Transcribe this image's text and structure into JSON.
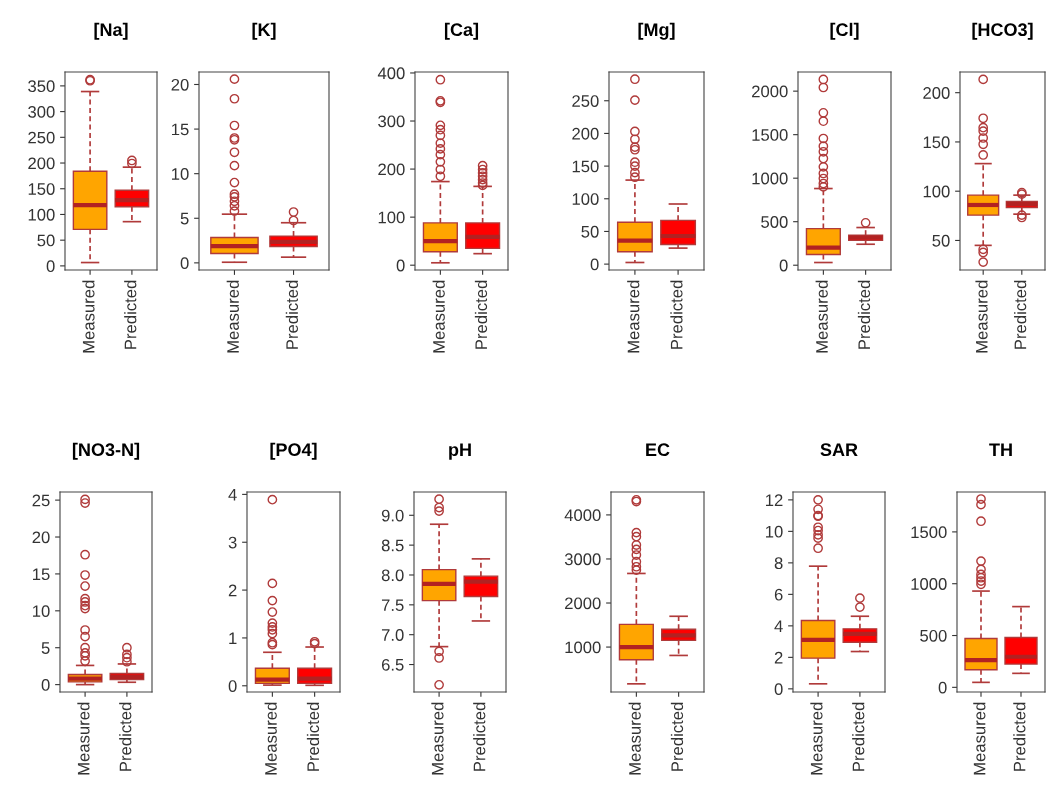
{
  "chart_data": [
    {
      "type": "box",
      "title": "[Na]",
      "categories": [
        "Measured",
        "Predicted"
      ],
      "colors": [
        "#ffa500",
        "#ff0000"
      ],
      "ylim": [
        -8,
        377
      ],
      "yticks": [
        0,
        50,
        100,
        150,
        200,
        250,
        300,
        350
      ],
      "boxes": [
        {
          "low": 6.5,
          "q1": 71,
          "median": 118,
          "q3": 184,
          "high": 339,
          "outliers": [
            362,
            360
          ]
        },
        {
          "low": 86,
          "q1": 115,
          "median": 128,
          "q3": 147,
          "high": 192,
          "outliers": [
            205,
            199
          ]
        }
      ]
    },
    {
      "type": "box",
      "title": "[K]",
      "categories": [
        "Measured",
        "Predicted"
      ],
      "colors": [
        "#ffa500",
        "#ff0000"
      ],
      "ylim": [
        -0.8,
        21.4
      ],
      "yticks": [
        0,
        5,
        10,
        15,
        20
      ],
      "boxes": [
        {
          "low": 0.07,
          "q1": 1.05,
          "median": 1.87,
          "q3": 2.84,
          "high": 5.46,
          "outliers": [
            20.6,
            18.4,
            15.4,
            14.0,
            13.8,
            12.4,
            10.9,
            9.0,
            7.7,
            7.4,
            6.9,
            6.4,
            5.8
          ]
        },
        {
          "low": 0.64,
          "q1": 1.83,
          "median": 2.36,
          "q3": 3.0,
          "high": 4.5,
          "outliers": [
            5.7,
            4.75
          ]
        }
      ]
    },
    {
      "type": "box",
      "title": "[Ca]",
      "categories": [
        "Measured",
        "Predicted"
      ],
      "colors": [
        "#ffa500",
        "#ff0000"
      ],
      "ylim": [
        -10,
        402
      ],
      "yticks": [
        0,
        100,
        200,
        300,
        400
      ],
      "boxes": [
        {
          "low": 5,
          "q1": 28,
          "median": 50,
          "q3": 88,
          "high": 174,
          "outliers": [
            386,
            342,
            339,
            291,
            282,
            270,
            254,
            242,
            230,
            215,
            199,
            185
          ]
        },
        {
          "low": 24,
          "q1": 35,
          "median": 59,
          "q3": 88,
          "high": 164,
          "outliers": [
            207,
            199,
            192,
            185,
            178,
            171,
            166
          ]
        }
      ]
    },
    {
      "type": "box",
      "title": "[Mg]",
      "categories": [
        "Measured",
        "Predicted"
      ],
      "colors": [
        "#ffa500",
        "#ff0000"
      ],
      "ylim": [
        -9,
        294
      ],
      "yticks": [
        0,
        50,
        100,
        150,
        200,
        250
      ],
      "boxes": [
        {
          "low": 2.5,
          "q1": 19,
          "median": 36,
          "q3": 64,
          "high": 128.6,
          "outliers": [
            283,
            251,
            203,
            191,
            179,
            175,
            156,
            150,
            140,
            133
          ]
        },
        {
          "low": 24.5,
          "q1": 30,
          "median": 43,
          "q3": 67,
          "high": 92
        }
      ]
    },
    {
      "type": "box",
      "title": "[Cl]",
      "categories": [
        "Measured",
        "Predicted"
      ],
      "colors": [
        "#ffa500",
        "#ff0000"
      ],
      "ylim": [
        -55,
        2220
      ],
      "yticks": [
        0,
        500,
        1000,
        1500,
        2000
      ],
      "boxes": [
        {
          "low": 31,
          "q1": 123,
          "median": 203,
          "q3": 421,
          "high": 881,
          "outliers": [
            2134,
            2042,
            1751,
            1655,
            1456,
            1368,
            1303,
            1226,
            1130,
            1054,
            996,
            939,
            900
          ]
        },
        {
          "low": 241,
          "q1": 287,
          "median": 318,
          "q3": 345,
          "high": 433,
          "outliers": [
            487
          ]
        }
      ]
    },
    {
      "type": "box",
      "title": "[HCO3]",
      "categories": [
        "Measured",
        "Predicted"
      ],
      "colors": [
        "#ffa500",
        "#ff0000"
      ],
      "ylim": [
        20,
        221
      ],
      "yticks": [
        50,
        100,
        150,
        200
      ],
      "boxes": [
        {
          "low": 45,
          "q1": 75.7,
          "median": 86,
          "q3": 96,
          "high": 128,
          "outliers": [
            213.5,
            174,
            164.5,
            161,
            154,
            147.6,
            136.8,
            41,
            37.8,
            28
          ]
        },
        {
          "low": 76.7,
          "q1": 83.4,
          "median": 87,
          "q3": 89.5,
          "high": 96,
          "outliers": [
            98.6,
            97,
            75.7,
            73.3
          ]
        }
      ]
    },
    {
      "type": "box",
      "title": "[NO3-N]",
      "categories": [
        "Measured",
        "Predicted"
      ],
      "colors": [
        "#ffa500",
        "#ff0000"
      ],
      "ylim": [
        -1,
        26.1
      ],
      "yticks": [
        0,
        5,
        10,
        15,
        20,
        25
      ],
      "boxes": [
        {
          "low": 0.0,
          "q1": 0.37,
          "median": 0.82,
          "q3": 1.37,
          "high": 2.6,
          "outliers": [
            25.1,
            24.6,
            17.6,
            14.85,
            13.35,
            11.65,
            11.2,
            10.7,
            10.3,
            7.4,
            6.5,
            5.0,
            4.3,
            3.9,
            3.2
          ]
        },
        {
          "low": 0.32,
          "q1": 0.7,
          "median": 1.05,
          "q3": 1.5,
          "high": 2.8,
          "outliers": [
            5.0,
            4.1,
            3.65,
            3.1
          ]
        }
      ]
    },
    {
      "type": "box",
      "title": "[PO4]",
      "categories": [
        "Measured",
        "Predicted"
      ],
      "colors": [
        "#ffa500",
        "#ff0000"
      ],
      "ylim": [
        -0.13,
        4.05
      ],
      "yticks": [
        0,
        1,
        2,
        3,
        4
      ],
      "boxes": [
        {
          "low": 0.014,
          "q1": 0.05,
          "median": 0.13,
          "q3": 0.365,
          "high": 0.7,
          "outliers": [
            3.89,
            2.14,
            1.78,
            1.54,
            1.31,
            1.23,
            1.17,
            1.09,
            0.9,
            0.86
          ]
        },
        {
          "low": 0.01,
          "q1": 0.05,
          "median": 0.15,
          "q3": 0.365,
          "high": 0.81,
          "outliers": [
            0.92,
            0.88
          ]
        }
      ]
    },
    {
      "type": "box",
      "title": "pH",
      "categories": [
        "Measured",
        "Predicted"
      ],
      "colors": [
        "#ffa500",
        "#ff0000"
      ],
      "ylim": [
        6.04,
        9.39
      ],
      "yticks": [
        6.5,
        {
          "value": 7,
          "label": "7.0"
        },
        7.5,
        {
          "value": 8,
          "label": "8.0"
        },
        8.5,
        {
          "value": 9,
          "label": "9.0"
        }
      ],
      "boxes": [
        {
          "low": 6.8,
          "q1": 7.57,
          "median": 7.85,
          "q3": 8.09,
          "high": 8.85,
          "outliers": [
            9.27,
            9.13,
            9.07,
            6.72,
            6.61,
            6.16
          ]
        },
        {
          "low": 7.23,
          "q1": 7.64,
          "median": 7.89,
          "q3": 7.98,
          "high": 8.27
        }
      ]
    },
    {
      "type": "box",
      "title": "EC",
      "categories": [
        "Measured",
        "Predicted"
      ],
      "colors": [
        "#ffa500",
        "#ff0000"
      ],
      "ylim": [
        -20,
        4520
      ],
      "yticks": [
        1000,
        2000,
        3000,
        4000
      ],
      "boxes": [
        {
          "low": 165,
          "q1": 711,
          "median": 1000,
          "q3": 1516,
          "high": 2671,
          "outliers": [
            4342,
            4304,
            3598,
            3506,
            3316,
            3218,
            3089,
            2937,
            2823,
            2747
          ]
        },
        {
          "low": 810,
          "q1": 1152,
          "median": 1266,
          "q3": 1403,
          "high": 1699
        }
      ]
    },
    {
      "type": "box",
      "title": "SAR",
      "categories": [
        "Measured",
        "Predicted"
      ],
      "colors": [
        "#ffa500",
        "#ff0000"
      ],
      "ylim": [
        -0.2,
        12.5
      ],
      "yticks": [
        0,
        2,
        4,
        6,
        8,
        10,
        12
      ],
      "boxes": [
        {
          "low": 0.32,
          "q1": 1.95,
          "median": 3.11,
          "q3": 4.34,
          "high": 7.79,
          "outliers": [
            12.0,
            11.4,
            11.0,
            10.96,
            10.26,
            10.05,
            9.78,
            9.57,
            8.93
          ]
        },
        {
          "low": 2.37,
          "q1": 2.96,
          "median": 3.49,
          "q3": 3.81,
          "high": 4.61,
          "outliers": [
            5.76,
            5.19
          ]
        }
      ]
    },
    {
      "type": "box",
      "title": "TH",
      "categories": [
        "Measured",
        "Predicted"
      ],
      "colors": [
        "#ffa500",
        "#ff0000"
      ],
      "ylim": [
        -45,
        1885
      ],
      "yticks": [
        0,
        500,
        1000,
        1500
      ],
      "boxes": [
        {
          "low": 48,
          "q1": 170,
          "median": 263,
          "q3": 471,
          "high": 929,
          "outliers": [
            1817,
            1763,
            1603,
            1218,
            1138,
            1090,
            1058,
            1026,
            994
          ]
        },
        {
          "low": 135,
          "q1": 224,
          "median": 295,
          "q3": 481,
          "high": 779
        }
      ]
    }
  ]
}
